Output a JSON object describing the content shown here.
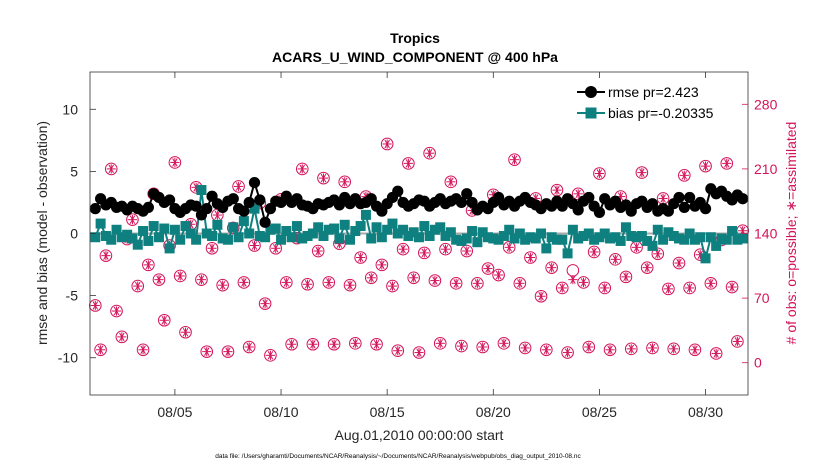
{
  "chart_data": {
    "type": "line",
    "title": "Tropics",
    "subtitle": "ACARS_U_WIND_COMPONENT @ 400 hPa",
    "xlabel": "Aug.01,2010 00:00:00 start",
    "ylabel": "rmse and bias (model - observation)",
    "ylabel_right": "# of obs: o=possible; ∗=assimilated",
    "footer": "data file: /Users/gharamti/Documents/NCAR/Reanalysis/~/Documents/NCAR/Reanalysis/webpub/obs_diag_output_2010-08.nc",
    "xlim": [
      1.0,
      32.0
    ],
    "ylim": [
      -13,
      13
    ],
    "ylim_right": [
      -35,
      315
    ],
    "x_ticks": [
      5,
      10,
      15,
      20,
      25,
      30
    ],
    "x_tick_labels": [
      "08/05",
      "08/10",
      "08/15",
      "08/20",
      "08/25",
      "08/30"
    ],
    "y_ticks": [
      -10,
      -5,
      0,
      5,
      10
    ],
    "y_tick_labels": [
      "-10",
      "-5",
      "0",
      "5",
      "10"
    ],
    "y_ticks_right": [
      0,
      70,
      140,
      210,
      280
    ],
    "y_tick_labels_right": [
      "0",
      "70",
      "140",
      "210",
      "280"
    ],
    "zero_line": 0,
    "legend_placement": "top-right",
    "colors": {
      "rmse": "#000000",
      "bias": "#0e8080",
      "obs": "#d4145a",
      "zero": "#aaaaaa",
      "axis": "#333333"
    },
    "series": [
      {
        "name": "rmse pr=2.423",
        "marker": "circle",
        "x": [
          1.25,
          1.5,
          1.75,
          2.0,
          2.25,
          2.5,
          2.75,
          3.0,
          3.25,
          3.5,
          3.75,
          4.0,
          4.25,
          4.5,
          4.75,
          5.0,
          5.25,
          5.5,
          5.75,
          6.0,
          6.25,
          6.5,
          6.75,
          7.0,
          7.25,
          7.5,
          7.75,
          8.0,
          8.25,
          8.5,
          8.75,
          9.0,
          9.25,
          9.5,
          9.75,
          10.0,
          10.25,
          10.5,
          10.75,
          11.0,
          11.25,
          11.5,
          11.75,
          12.0,
          12.25,
          12.5,
          12.75,
          13.0,
          13.25,
          13.5,
          13.75,
          14.0,
          14.25,
          14.5,
          14.75,
          15.0,
          15.25,
          15.5,
          15.75,
          16.0,
          16.25,
          16.5,
          16.75,
          17.0,
          17.25,
          17.5,
          17.75,
          18.0,
          18.25,
          18.5,
          18.75,
          19.0,
          19.25,
          19.5,
          19.75,
          20.0,
          20.25,
          20.5,
          20.75,
          21.0,
          21.25,
          21.5,
          21.75,
          22.0,
          22.25,
          22.5,
          22.75,
          23.0,
          23.25,
          23.5,
          23.75,
          24.0,
          24.25,
          24.5,
          24.75,
          25.0,
          25.25,
          25.5,
          25.75,
          26.0,
          26.25,
          26.5,
          26.75,
          27.0,
          27.25,
          27.5,
          27.75,
          28.0,
          28.25,
          28.5,
          28.75,
          29.0,
          29.25,
          29.5,
          29.75,
          30.0,
          30.25,
          30.5,
          30.75,
          31.0,
          31.25,
          31.5,
          31.75
        ],
        "values": [
          2.0,
          2.8,
          2.3,
          2.5,
          2.1,
          2.2,
          1.9,
          2.2,
          2.0,
          1.8,
          2.1,
          3.2,
          2.9,
          2.5,
          2.7,
          2.0,
          1.7,
          2.0,
          2.3,
          2.2,
          1.5,
          2.0,
          3.0,
          2.4,
          2.1,
          2.6,
          2.8,
          2.0,
          1.8,
          2.5,
          4.1,
          2.7,
          0.9,
          2.0,
          2.6,
          2.5,
          3.0,
          2.5,
          2.8,
          2.3,
          2.2,
          2.0,
          2.4,
          2.3,
          2.5,
          2.7,
          2.3,
          2.9,
          2.4,
          2.8,
          2.4,
          2.5,
          2.8,
          2.2,
          1.8,
          2.4,
          2.9,
          3.4,
          2.5,
          2.2,
          2.4,
          2.7,
          2.6,
          2.2,
          2.5,
          2.8,
          2.4,
          2.6,
          2.8,
          2.5,
          3.2,
          2.5,
          1.9,
          2.2,
          2.0,
          2.5,
          2.9,
          2.3,
          2.6,
          2.2,
          2.6,
          2.9,
          2.5,
          2.3,
          2.0,
          2.4,
          2.2,
          2.6,
          2.2,
          2.8,
          2.4,
          1.9,
          2.6,
          2.9,
          2.2,
          1.7,
          2.8,
          2.3,
          2.6,
          2.1,
          2.3,
          1.8,
          2.4,
          2.6,
          2.1,
          2.4,
          1.8,
          2.0,
          1.8,
          2.4,
          2.9,
          2.1,
          2.9,
          2.2,
          2.5,
          2.0,
          3.6,
          3.2,
          3.4,
          3.0,
          2.7,
          3.1,
          2.8
        ]
      },
      {
        "name": "bias pr=-0.20335",
        "marker": "square",
        "x": [
          1.25,
          1.5,
          1.75,
          2.0,
          2.25,
          2.5,
          2.75,
          3.0,
          3.25,
          3.5,
          3.75,
          4.0,
          4.25,
          4.5,
          4.75,
          5.0,
          5.25,
          5.5,
          5.75,
          6.0,
          6.25,
          6.5,
          6.75,
          7.0,
          7.25,
          7.5,
          7.75,
          8.0,
          8.25,
          8.5,
          8.75,
          9.0,
          9.25,
          9.5,
          9.75,
          10.0,
          10.25,
          10.5,
          10.75,
          11.0,
          11.25,
          11.5,
          11.75,
          12.0,
          12.25,
          12.5,
          12.75,
          13.0,
          13.25,
          13.5,
          13.75,
          14.0,
          14.25,
          14.5,
          14.75,
          15.0,
          15.25,
          15.5,
          15.75,
          16.0,
          16.25,
          16.5,
          16.75,
          17.0,
          17.25,
          17.5,
          17.75,
          18.0,
          18.25,
          18.5,
          18.75,
          19.0,
          19.25,
          19.5,
          19.75,
          20.0,
          20.25,
          20.5,
          20.75,
          21.0,
          21.25,
          21.5,
          21.75,
          22.0,
          22.25,
          22.5,
          22.75,
          23.0,
          23.25,
          23.5,
          23.75,
          24.0,
          24.25,
          24.5,
          24.75,
          25.0,
          25.25,
          25.5,
          25.75,
          26.0,
          26.25,
          26.5,
          26.75,
          27.0,
          27.25,
          27.5,
          27.75,
          28.0,
          28.25,
          28.5,
          28.75,
          29.0,
          29.25,
          29.5,
          29.75,
          30.0,
          30.25,
          30.5,
          30.75,
          31.0,
          31.25,
          31.5,
          31.75
        ],
        "values": [
          -0.3,
          0.8,
          -0.2,
          -0.5,
          0.3,
          -0.3,
          -0.1,
          -0.4,
          -0.9,
          0.2,
          -0.6,
          0.6,
          -0.3,
          0.4,
          -1.2,
          0.3,
          -0.5,
          0.6,
          0.0,
          -0.5,
          3.5,
          0.0,
          -0.2,
          0.7,
          -0.4,
          -0.5,
          0.5,
          -0.3,
          1.0,
          0.0,
          2.0,
          -0.2,
          -0.3,
          0.3,
          0.4,
          -0.5,
          0.2,
          -0.3,
          0.6,
          -0.4,
          -0.2,
          0.0,
          0.5,
          -0.2,
          0.3,
          0.4,
          -0.4,
          0.7,
          -0.5,
          0.2,
          0.6,
          1.5,
          -0.4,
          0.5,
          -0.3,
          0.3,
          0.8,
          0.0,
          0.3,
          -0.2,
          0.1,
          -0.3,
          0.6,
          -0.2,
          0.3,
          0.5,
          -0.2,
          0.1,
          -0.5,
          -0.6,
          -0.4,
          0.2,
          -0.7,
          0.1,
          -0.3,
          -0.4,
          -0.5,
          -0.2,
          0.3,
          -0.4,
          0.0,
          -0.5,
          -0.3,
          -0.4,
          0.0,
          -1.2,
          -0.3,
          -0.5,
          -0.5,
          -1.6,
          0.3,
          -0.4,
          -0.2,
          0.0,
          -0.5,
          -0.3,
          0.0,
          -0.4,
          -0.3,
          -0.6,
          0.5,
          -0.2,
          -0.3,
          -0.2,
          -0.6,
          -1.0,
          0.3,
          -0.5,
          0.1,
          -0.2,
          -0.4,
          -0.5,
          0.0,
          -0.5,
          -0.3,
          -2.0,
          -0.3,
          -1.0,
          -0.4,
          -0.5,
          0.2,
          -0.5,
          -0.4
        ]
      }
    ],
    "obs_counts": {
      "possible_name": "possible",
      "assimilated_name": "assimilated",
      "x": [
        1.25,
        1.5,
        1.75,
        2.0,
        2.25,
        2.5,
        2.75,
        3.0,
        3.25,
        3.5,
        3.75,
        4.0,
        4.25,
        4.5,
        4.75,
        5.0,
        5.25,
        5.5,
        5.75,
        6.0,
        6.25,
        6.5,
        6.75,
        7.0,
        7.25,
        7.5,
        7.75,
        8.0,
        8.25,
        8.5,
        8.75,
        9.0,
        9.25,
        9.5,
        9.75,
        10.0,
        10.25,
        10.5,
        10.75,
        11.0,
        11.25,
        11.5,
        11.75,
        12.0,
        12.25,
        12.5,
        12.75,
        13.0,
        13.25,
        13.5,
        13.75,
        14.0,
        14.25,
        14.5,
        14.75,
        15.0,
        15.25,
        15.5,
        15.75,
        16.0,
        16.25,
        16.5,
        16.75,
        17.0,
        17.25,
        17.5,
        17.75,
        18.0,
        18.25,
        18.5,
        18.75,
        19.0,
        19.25,
        19.5,
        19.75,
        20.0,
        20.25,
        20.5,
        20.75,
        21.0,
        21.25,
        21.5,
        21.75,
        22.0,
        22.25,
        22.5,
        22.75,
        23.0,
        23.25,
        23.5,
        23.75,
        24.0,
        24.25,
        24.5,
        24.75,
        25.0,
        25.25,
        25.5,
        25.75,
        26.0,
        26.25,
        26.5,
        26.75,
        27.0,
        27.25,
        27.5,
        27.75,
        28.0,
        28.25,
        28.5,
        28.75,
        29.0,
        29.25,
        29.5,
        29.75,
        30.0,
        30.25,
        30.5,
        30.75,
        31.0,
        31.25,
        31.5,
        31.75
      ],
      "possible": [
        62,
        14,
        116,
        210,
        56,
        28,
        134,
        155,
        83,
        14,
        106,
        183,
        90,
        46,
        127,
        217,
        94,
        33,
        150,
        190,
        90,
        12,
        124,
        160,
        84,
        12,
        146,
        191,
        87,
        17,
        127,
        173,
        64,
        8,
        124,
        177,
        87,
        20,
        135,
        210,
        85,
        20,
        121,
        200,
        87,
        20,
        129,
        196,
        84,
        21,
        114,
        180,
        92,
        20,
        106,
        237,
        83,
        13,
        123,
        216,
        92,
        11,
        119,
        227,
        89,
        21,
        123,
        196,
        86,
        18,
        121,
        165,
        86,
        17,
        102,
        182,
        95,
        21,
        125,
        220,
        86,
        16,
        114,
        178,
        72,
        14,
        103,
        187,
        81,
        11,
        100,
        183,
        87,
        17,
        120,
        205,
        81,
        14,
        112,
        180,
        93,
        15,
        125,
        206,
        103,
        16,
        118,
        178,
        80,
        15,
        108,
        203,
        81,
        14,
        117,
        213,
        86,
        10,
        133,
        216,
        82,
        23,
        143,
        187,
        0
      ],
      "assimilated": [
        62,
        14,
        116,
        210,
        56,
        28,
        134,
        155,
        83,
        14,
        106,
        183,
        90,
        46,
        127,
        217,
        94,
        33,
        150,
        190,
        90,
        12,
        124,
        160,
        84,
        12,
        146,
        191,
        87,
        17,
        127,
        173,
        64,
        8,
        124,
        177,
        87,
        20,
        135,
        210,
        85,
        20,
        121,
        200,
        87,
        20,
        129,
        196,
        84,
        21,
        114,
        180,
        92,
        20,
        106,
        237,
        83,
        13,
        123,
        216,
        92,
        11,
        119,
        227,
        89,
        21,
        123,
        196,
        86,
        18,
        121,
        165,
        86,
        17,
        102,
        182,
        95,
        21,
        125,
        220,
        86,
        16,
        114,
        178,
        72,
        14,
        103,
        187,
        81,
        11,
        90,
        183,
        87,
        17,
        120,
        205,
        81,
        14,
        112,
        180,
        93,
        15,
        125,
        206,
        103,
        16,
        118,
        178,
        80,
        15,
        108,
        203,
        81,
        14,
        117,
        213,
        86,
        10,
        133,
        216,
        82,
        23,
        143,
        187,
        0
      ]
    }
  }
}
